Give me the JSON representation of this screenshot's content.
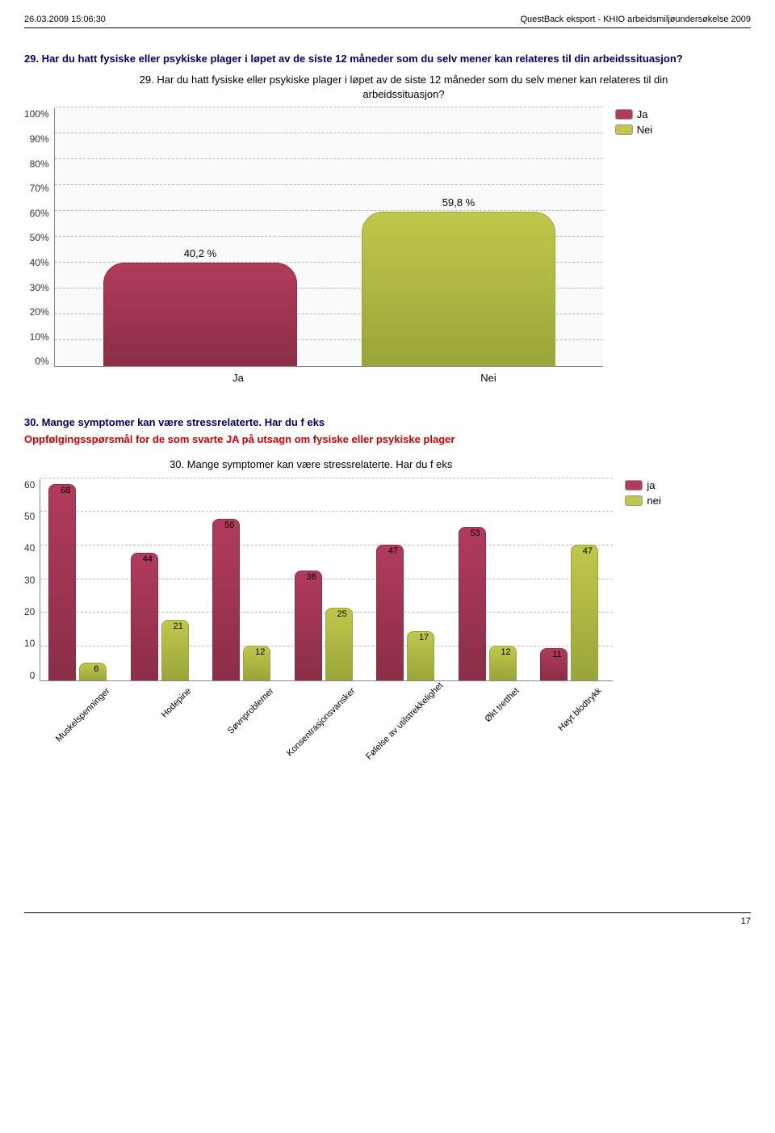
{
  "header": {
    "left": "26.03.2009 15:06:30",
    "right": "QuestBack eksport - KHIO arbeidsmiljøundersøkelse 2009"
  },
  "q29": {
    "question": "29. Har du hatt fysiske eller psykiske plager i løpet av de siste 12 måneder som du selv mener kan relateres til din arbeidssituasjon?",
    "chart_title": "29. Har du hatt fysiske eller psykiske plager i løpet av de siste 12 måneder som du selv mener kan relateres til din arbeidssituasjon?",
    "type": "bar",
    "ymax": 100,
    "ytick_step": 10,
    "ylabels": [
      "100%",
      "90%",
      "80%",
      "70%",
      "60%",
      "50%",
      "40%",
      "30%",
      "20%",
      "10%",
      "0%"
    ],
    "categories": [
      "Ja",
      "Nei"
    ],
    "values": [
      40.2,
      59.8
    ],
    "value_labels": [
      "40,2 %",
      "59,8 %"
    ],
    "bar_colors": [
      "#b13b5c",
      "#c0c84a"
    ],
    "bar_gradient_dark": [
      "#8b2e48",
      "#9aa53a"
    ],
    "legend": [
      {
        "label": "Ja",
        "color": "#b13b5c"
      },
      {
        "label": "Nei",
        "color": "#c0c84a"
      }
    ]
  },
  "q30": {
    "question": "30. Mange symptomer kan være stressrelaterte. Har du f eks",
    "sub": "Oppfølgingsspørsmål for de som svarte JA på utsagn om fysiske eller psykiske plager",
    "chart_title": "30. Mange symptomer kan være stressrelaterte. Har du f eks",
    "type": "bar",
    "ymax": 70,
    "ytick_step": 10,
    "ylabels": [
      "60",
      "50",
      "40",
      "30",
      "20",
      "10",
      "0"
    ],
    "categories": [
      "Muskelspenninger",
      "Hodepine",
      "Søvnproblemer",
      "Konsentrasjonsvansker",
      "Følelse av utilstrekkelighet",
      "Økt tretthet",
      "Høyt blodtrykk"
    ],
    "series": [
      {
        "name": "ja",
        "color": "#b13b5c",
        "dark": "#8b2e48",
        "values": [
          68,
          44,
          56,
          38,
          47,
          53,
          11
        ]
      },
      {
        "name": "nei",
        "color": "#c0c84a",
        "dark": "#9aa53a",
        "values": [
          6,
          21,
          12,
          25,
          17,
          12,
          47
        ]
      }
    ],
    "legend": [
      {
        "label": "ja",
        "color": "#b13b5c"
      },
      {
        "label": "nei",
        "color": "#c0c84a"
      }
    ]
  },
  "page_number": "17"
}
